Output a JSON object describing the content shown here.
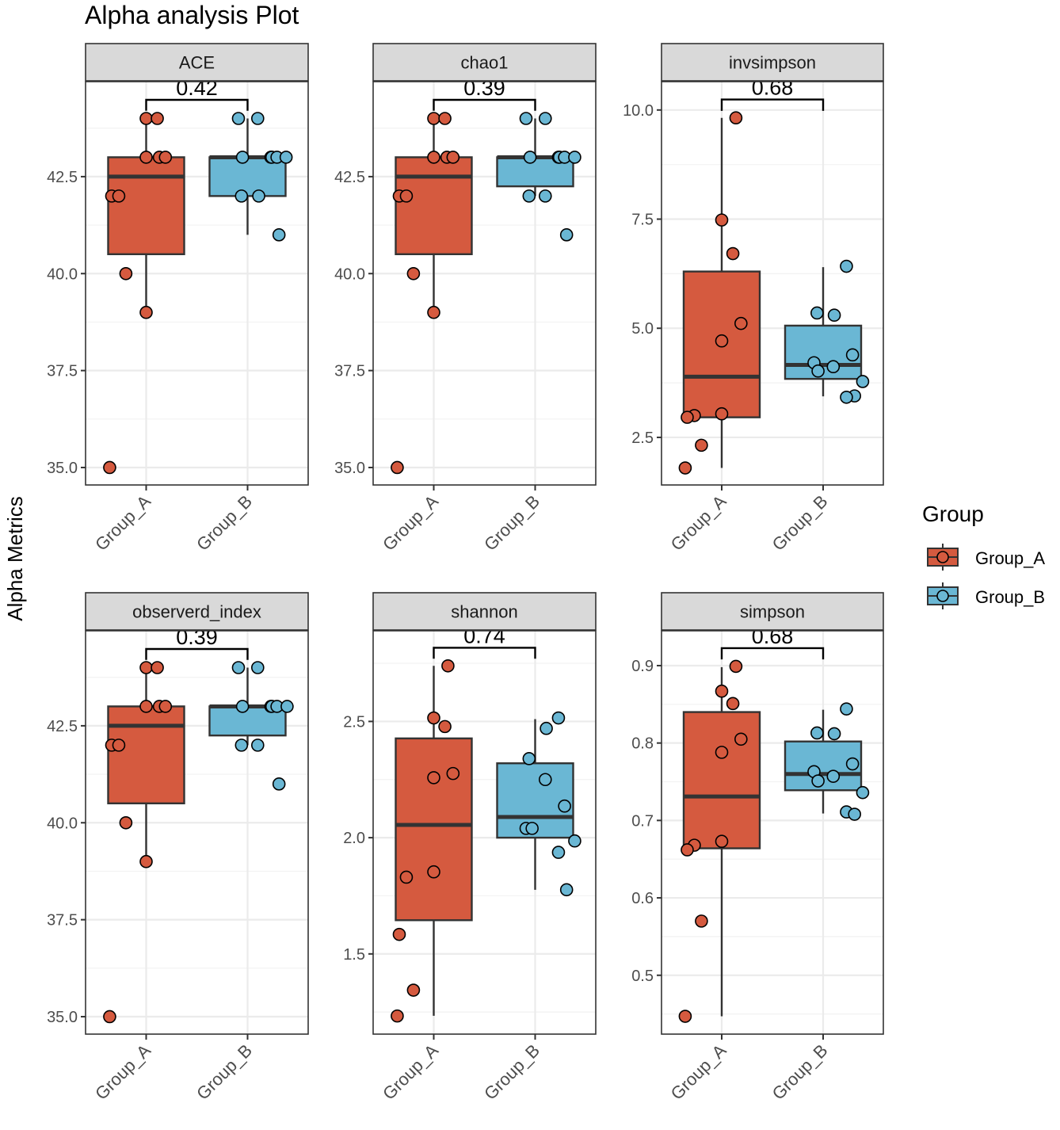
{
  "chart_data": {
    "type": "boxplot",
    "title": "Alpha analysis Plot",
    "ylabel": "Alpha Metrics",
    "xlabel": "",
    "categories": [
      "Group_A",
      "Group_B"
    ],
    "colors": {
      "Group_A": "#D55A3F",
      "Group_B": "#6AB7D4"
    },
    "legend": {
      "title": "Group",
      "position": "right",
      "entries": [
        "Group_A",
        "Group_B"
      ]
    },
    "grid": true,
    "facets": [
      {
        "name": "ACE",
        "ylim": [
          34.55,
          44.95
        ],
        "yticks": [
          35.0,
          37.5,
          40.0,
          42.5
        ],
        "ytick_labels": [
          "35.0",
          "37.5",
          "40.0",
          "42.5"
        ],
        "p_value": "0.42",
        "bracket": {
          "y": 44.48,
          "tick_end": 44.2
        },
        "groups": [
          {
            "name": "Group_A",
            "q1": 40.5,
            "median": 42.5,
            "q3": 43.0,
            "whisker_low": 39.0,
            "whisker_high": 44.0,
            "points": [
              {
                "y": 44,
                "jitter": 0.0
              },
              {
                "y": 44,
                "jitter": 0.11
              },
              {
                "y": 43,
                "jitter": 0.0
              },
              {
                "y": 43,
                "jitter": 0.13
              },
              {
                "y": 43,
                "jitter": 0.19
              },
              {
                "y": 42,
                "jitter": -0.34
              },
              {
                "y": 42,
                "jitter": -0.27
              },
              {
                "y": 40,
                "jitter": -0.2
              },
              {
                "y": 39,
                "jitter": 0.0
              },
              {
                "y": 35,
                "jitter": -0.36
              }
            ]
          },
          {
            "name": "Group_B",
            "q1": 42.0,
            "median": 43.0,
            "q3": 43.0,
            "whisker_low": 41.0,
            "whisker_high": 44.0,
            "points": [
              {
                "y": 44,
                "jitter": -0.09
              },
              {
                "y": 44,
                "jitter": 0.1
              },
              {
                "y": 43,
                "jitter": -0.05
              },
              {
                "y": 43,
                "jitter": 0.23
              },
              {
                "y": 43,
                "jitter": 0.24
              },
              {
                "y": 43,
                "jitter": 0.29
              },
              {
                "y": 43,
                "jitter": 0.38
              },
              {
                "y": 42,
                "jitter": -0.06
              },
              {
                "y": 42,
                "jitter": 0.11
              },
              {
                "y": 41,
                "jitter": 0.31
              }
            ]
          }
        ]
      },
      {
        "name": "chao1",
        "ylim": [
          34.55,
          44.95
        ],
        "yticks": [
          35.0,
          37.5,
          40.0,
          42.5
        ],
        "ytick_labels": [
          "35.0",
          "37.5",
          "40.0",
          "42.5"
        ],
        "p_value": "0.39",
        "bracket": {
          "y": 44.48,
          "tick_end": 44.2
        },
        "groups": [
          {
            "name": "Group_A",
            "q1": 40.5,
            "median": 42.5,
            "q3": 43.0,
            "whisker_low": 39.0,
            "whisker_high": 44.0,
            "points": [
              {
                "y": 44,
                "jitter": 0.0
              },
              {
                "y": 44,
                "jitter": 0.11
              },
              {
                "y": 43,
                "jitter": 0.0
              },
              {
                "y": 43,
                "jitter": 0.13
              },
              {
                "y": 43,
                "jitter": 0.19
              },
              {
                "y": 42,
                "jitter": -0.34
              },
              {
                "y": 42,
                "jitter": -0.27
              },
              {
                "y": 40,
                "jitter": -0.2
              },
              {
                "y": 39,
                "jitter": 0.0
              },
              {
                "y": 35,
                "jitter": -0.36
              }
            ]
          },
          {
            "name": "Group_B",
            "q1": 42.25,
            "median": 43.0,
            "q3": 43.0,
            "whisker_low": 42.0,
            "whisker_high": 44.0,
            "points": [
              {
                "y": 44,
                "jitter": -0.09
              },
              {
                "y": 44,
                "jitter": 0.1
              },
              {
                "y": 43,
                "jitter": -0.05
              },
              {
                "y": 43,
                "jitter": 0.23
              },
              {
                "y": 43,
                "jitter": 0.24
              },
              {
                "y": 43,
                "jitter": 0.29
              },
              {
                "y": 43,
                "jitter": 0.39
              },
              {
                "y": 42,
                "jitter": -0.06
              },
              {
                "y": 42,
                "jitter": 0.1
              },
              {
                "y": 41,
                "jitter": 0.31
              }
            ]
          }
        ]
      },
      {
        "name": "invsimpson",
        "ylim": [
          1.41,
          10.65
        ],
        "yticks": [
          2.5,
          5.0,
          7.5,
          10.0
        ],
        "ytick_labels": [
          "2.5",
          "5.0",
          "7.5",
          "10.0"
        ],
        "p_value": "0.68",
        "bracket": {
          "y": 10.24,
          "tick_end": 9.98
        },
        "groups": [
          {
            "name": "Group_A",
            "q1": 2.96,
            "median": 3.89,
            "q3": 6.3,
            "whisker_low": 1.8,
            "whisker_high": 9.82,
            "points": [
              {
                "y": 9.82,
                "jitter": 0.14
              },
              {
                "y": 7.48,
                "jitter": 0.0
              },
              {
                "y": 6.71,
                "jitter": 0.11
              },
              {
                "y": 5.11,
                "jitter": 0.19
              },
              {
                "y": 4.71,
                "jitter": 0.0
              },
              {
                "y": 3.04,
                "jitter": 0.0
              },
              {
                "y": 3.0,
                "jitter": -0.27
              },
              {
                "y": 2.96,
                "jitter": -0.34
              },
              {
                "y": 2.32,
                "jitter": -0.2
              },
              {
                "y": 1.8,
                "jitter": -0.36
              }
            ]
          },
          {
            "name": "Group_B",
            "q1": 3.84,
            "median": 4.16,
            "q3": 5.06,
            "whisker_low": 3.44,
            "whisker_high": 6.4,
            "points": [
              {
                "y": 6.42,
                "jitter": 0.23
              },
              {
                "y": 5.35,
                "jitter": -0.06
              },
              {
                "y": 5.3,
                "jitter": 0.11
              },
              {
                "y": 4.39,
                "jitter": 0.29
              },
              {
                "y": 4.21,
                "jitter": -0.09
              },
              {
                "y": 4.12,
                "jitter": 0.1
              },
              {
                "y": 4.02,
                "jitter": -0.05
              },
              {
                "y": 3.78,
                "jitter": 0.39
              },
              {
                "y": 3.45,
                "jitter": 0.31
              },
              {
                "y": 3.42,
                "jitter": 0.23
              }
            ]
          }
        ]
      },
      {
        "name": "observerd_index",
        "ylim": [
          34.55,
          44.95
        ],
        "yticks": [
          35.0,
          37.5,
          40.0,
          42.5
        ],
        "ytick_labels": [
          "35.0",
          "37.5",
          "40.0",
          "42.5"
        ],
        "p_value": "0.39",
        "bracket": {
          "y": 44.48,
          "tick_end": 44.2
        },
        "groups": [
          {
            "name": "Group_A",
            "q1": 40.5,
            "median": 42.5,
            "q3": 43.0,
            "whisker_low": 39.0,
            "whisker_high": 44.0,
            "points": [
              {
                "y": 44,
                "jitter": 0.0
              },
              {
                "y": 44,
                "jitter": 0.11
              },
              {
                "y": 43,
                "jitter": 0.0
              },
              {
                "y": 43,
                "jitter": 0.13
              },
              {
                "y": 43,
                "jitter": 0.19
              },
              {
                "y": 42,
                "jitter": -0.34
              },
              {
                "y": 42,
                "jitter": -0.27
              },
              {
                "y": 40,
                "jitter": -0.2
              },
              {
                "y": 39,
                "jitter": 0.0
              },
              {
                "y": 35,
                "jitter": -0.36
              }
            ]
          },
          {
            "name": "Group_B",
            "q1": 42.25,
            "median": 43.0,
            "q3": 43.0,
            "whisker_low": 42.0,
            "whisker_high": 44.0,
            "points": [
              {
                "y": 44,
                "jitter": -0.09
              },
              {
                "y": 44,
                "jitter": 0.1
              },
              {
                "y": 43,
                "jitter": -0.05
              },
              {
                "y": 43,
                "jitter": 0.23
              },
              {
                "y": 43,
                "jitter": 0.24
              },
              {
                "y": 43,
                "jitter": 0.29
              },
              {
                "y": 43,
                "jitter": 0.39
              },
              {
                "y": 42,
                "jitter": -0.06
              },
              {
                "y": 42,
                "jitter": 0.1
              },
              {
                "y": 41,
                "jitter": 0.31
              }
            ]
          }
        ]
      },
      {
        "name": "shannon",
        "ylim": [
          1.155,
          2.89
        ],
        "yticks": [
          1.5,
          2.0,
          2.5
        ],
        "ytick_labels": [
          "1.5",
          "2.0",
          "2.5"
        ],
        "p_value": "0.74",
        "bracket": {
          "y": 2.817,
          "tick_end": 2.77
        },
        "groups": [
          {
            "name": "Group_A",
            "q1": 1.645,
            "median": 2.055,
            "q3": 2.427,
            "whisker_low": 1.234,
            "whisker_high": 2.739,
            "points": [
              {
                "y": 2.739,
                "jitter": 0.14
              },
              {
                "y": 2.515,
                "jitter": 0.0
              },
              {
                "y": 2.478,
                "jitter": 0.11
              },
              {
                "y": 2.276,
                "jitter": 0.19
              },
              {
                "y": 2.258,
                "jitter": 0.0
              },
              {
                "y": 1.853,
                "jitter": 0.0
              },
              {
                "y": 1.83,
                "jitter": -0.27
              },
              {
                "y": 1.584,
                "jitter": -0.34
              },
              {
                "y": 1.344,
                "jitter": -0.2
              },
              {
                "y": 1.233,
                "jitter": -0.36
              }
            ]
          },
          {
            "name": "Group_B",
            "q1": 2.0,
            "median": 2.089,
            "q3": 2.32,
            "whisker_low": 1.776,
            "whisker_high": 2.51,
            "points": [
              {
                "y": 2.515,
                "jitter": 0.23
              },
              {
                "y": 2.47,
                "jitter": 0.11
              },
              {
                "y": 2.34,
                "jitter": -0.06
              },
              {
                "y": 2.25,
                "jitter": 0.1
              },
              {
                "y": 2.136,
                "jitter": 0.29
              },
              {
                "y": 2.04,
                "jitter": -0.09
              },
              {
                "y": 2.04,
                "jitter": -0.03
              },
              {
                "y": 1.986,
                "jitter": 0.39
              },
              {
                "y": 1.937,
                "jitter": 0.23
              },
              {
                "y": 1.776,
                "jitter": 0.31
              }
            ]
          }
        ]
      },
      {
        "name": "simpson",
        "ylim": [
          0.424,
          0.945
        ],
        "yticks": [
          0.5,
          0.6,
          0.7,
          0.8,
          0.9
        ],
        "ytick_labels": [
          "0.5",
          "0.6",
          "0.7",
          "0.8",
          "0.9"
        ],
        "p_value": "0.68",
        "bracket": {
          "y": 0.9225,
          "tick_end": 0.908
        },
        "groups": [
          {
            "name": "Group_A",
            "q1": 0.664,
            "median": 0.731,
            "q3": 0.84,
            "whisker_low": 0.447,
            "whisker_high": 0.898,
            "points": [
              {
                "y": 0.899,
                "jitter": 0.14
              },
              {
                "y": 0.867,
                "jitter": 0.0
              },
              {
                "y": 0.851,
                "jitter": 0.11
              },
              {
                "y": 0.805,
                "jitter": 0.19
              },
              {
                "y": 0.788,
                "jitter": 0.0
              },
              {
                "y": 0.673,
                "jitter": 0.0
              },
              {
                "y": 0.668,
                "jitter": -0.27
              },
              {
                "y": 0.662,
                "jitter": -0.34
              },
              {
                "y": 0.57,
                "jitter": -0.2
              },
              {
                "y": 0.447,
                "jitter": -0.36
              }
            ]
          },
          {
            "name": "Group_B",
            "q1": 0.739,
            "median": 0.76,
            "q3": 0.802,
            "whisker_low": 0.709,
            "whisker_high": 0.843,
            "points": [
              {
                "y": 0.844,
                "jitter": 0.23
              },
              {
                "y": 0.813,
                "jitter": -0.06
              },
              {
                "y": 0.812,
                "jitter": 0.11
              },
              {
                "y": 0.773,
                "jitter": 0.29
              },
              {
                "y": 0.763,
                "jitter": -0.09
              },
              {
                "y": 0.757,
                "jitter": 0.1
              },
              {
                "y": 0.751,
                "jitter": -0.05
              },
              {
                "y": 0.736,
                "jitter": 0.39
              },
              {
                "y": 0.711,
                "jitter": 0.23
              },
              {
                "y": 0.708,
                "jitter": 0.31
              }
            ]
          }
        ]
      }
    ]
  }
}
